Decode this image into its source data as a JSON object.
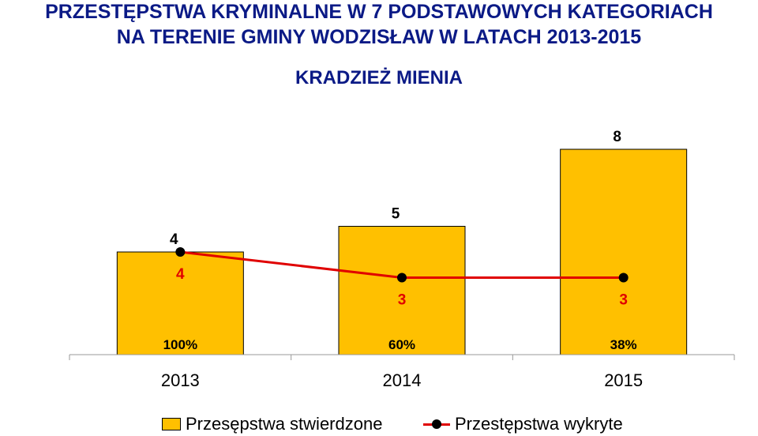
{
  "header": {
    "title_line_1": "PRZESTĘPSTWA KRYMINALNE W 7 PODSTAWOWYCH KATEGORIACH",
    "title_line_2": "NA TERENIE GMINY WODZISŁAW W LATACH 2013-2015",
    "subtitle": "KRADZIEŻ MIENIA"
  },
  "chart_data": {
    "type": "bar",
    "categories": [
      "2013",
      "2014",
      "2015"
    ],
    "series": [
      {
        "name": "Przesępstwa stwierdzone",
        "type": "bar",
        "values": [
          4,
          5,
          8
        ],
        "color": "#ffc000",
        "labels": [
          "4",
          "5",
          "8"
        ]
      },
      {
        "name": "Przestępstwa wykryte",
        "type": "line",
        "values": [
          4,
          3,
          3
        ],
        "color": "#e00000",
        "marker_color": "#000000",
        "labels": [
          "4",
          "3",
          "3"
        ]
      }
    ],
    "percent_labels": [
      "100%",
      "60%",
      "38%"
    ],
    "ylim": [
      0,
      8
    ],
    "grid": false,
    "legend_position": "bottom"
  }
}
